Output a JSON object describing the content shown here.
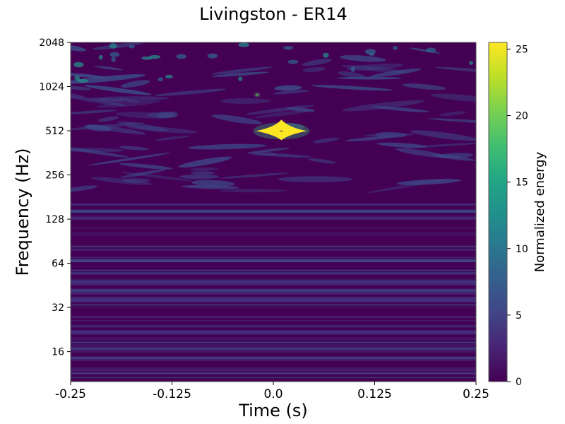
{
  "chart_data": {
    "type": "heatmap",
    "title": "Livingston - ER14",
    "xlabel": "Time (s)",
    "ylabel": "Frequency (Hz)",
    "x_ticks": [
      "-0.25",
      "-0.125",
      "0.0",
      "0.125",
      "0.25"
    ],
    "x_tick_values": [
      -0.25,
      -0.125,
      0.0,
      0.125,
      0.25
    ],
    "y_ticks": [
      "16",
      "32",
      "64",
      "128",
      "256",
      "512",
      "1024",
      "2048"
    ],
    "y_tick_values": [
      16,
      32,
      64,
      128,
      256,
      512,
      1024,
      2048
    ],
    "xlim": [
      -0.25,
      0.25
    ],
    "ylim": [
      10,
      2048
    ],
    "y_scale": "log2",
    "colorbar": {
      "label": "Normalized energy",
      "ticks": [
        "0",
        "5",
        "10",
        "15",
        "20",
        "25"
      ],
      "tick_values": [
        0,
        5,
        10,
        15,
        20,
        25
      ],
      "range": [
        0,
        25.5
      ],
      "colormap": "viridis"
    },
    "features": [
      {
        "t": 0.01,
        "f": 510,
        "energy": 25.5,
        "kind": "loud glitch (saturated)"
      },
      {
        "t": -0.02,
        "f": 900,
        "energy": 8,
        "kind": "minor blip"
      }
    ],
    "colors": {
      "low": "#440154",
      "mid": "#21918c",
      "high": "#fde725"
    }
  }
}
